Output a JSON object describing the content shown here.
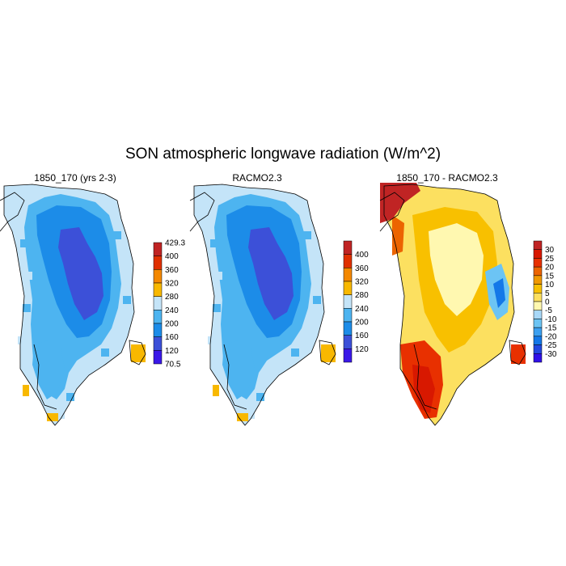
{
  "title": "SON atmospheric longwave radiation (W/m^2)",
  "colors": {
    "abs_scale": [
      "#3a18e8",
      "#3c50d8",
      "#1c8ce8",
      "#4db4f0",
      "#c4e4f8",
      "#fce98c",
      "#f8b800",
      "#f48800",
      "#e03000",
      "#c02424"
    ],
    "diff_scale": [
      "#3010e8",
      "#2248e0",
      "#1478e8",
      "#3ca0f0",
      "#6cc4f4",
      "#a8d8f8",
      "#fff8b0",
      "#fce060",
      "#f8c000",
      "#f09800",
      "#ec6400",
      "#e83000",
      "#d81800",
      "#c02424"
    ],
    "coastline": "#000000"
  },
  "panels": [
    {
      "id": "model",
      "title": "1850_170 (yrs 2-3)",
      "colorbar": {
        "labels": [
          "429.3",
          "400",
          "360",
          "320",
          "280",
          "240",
          "200",
          "160",
          "120",
          "70.5"
        ]
      }
    },
    {
      "id": "racmo",
      "title": "RACMO2.3",
      "colorbar": {
        "labels": [
          "400",
          "360",
          "320",
          "280",
          "240",
          "200",
          "160",
          "120"
        ]
      }
    },
    {
      "id": "difference",
      "title": "1850_170 - RACMO2.3",
      "colorbar": {
        "labels": [
          "30",
          "25",
          "20",
          "15",
          "10",
          "5",
          "0",
          "-5",
          "-10",
          "-15",
          "-20",
          "-25",
          "-30"
        ]
      }
    }
  ]
}
